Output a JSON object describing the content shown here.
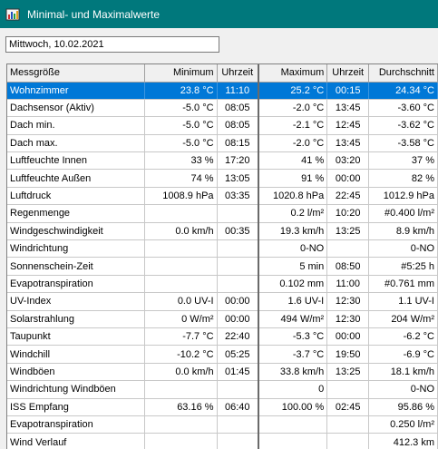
{
  "window": {
    "title": "Minimal- und Maximalwerte",
    "icon": "chart-app-icon"
  },
  "date_field": {
    "value": "Mittwoch, 10.02.2021"
  },
  "table": {
    "headers": {
      "name": "Messgröße",
      "minimum": "Minimum",
      "min_time": "Uhrzeit",
      "maximum": "Maximum",
      "max_time": "Uhrzeit",
      "average": "Durchschnitt"
    },
    "selected_row": 0,
    "rows": [
      {
        "name": "Wohnzimmer",
        "minimum": "23.8 °C",
        "min_time": "11:10",
        "maximum": "25.2 °C",
        "max_time": "00:15",
        "average": "24.34 °C"
      },
      {
        "name": "Dachsensor (Aktiv)",
        "minimum": "-5.0 °C",
        "min_time": "08:05",
        "maximum": "-2.0 °C",
        "max_time": "13:45",
        "average": "-3.60 °C"
      },
      {
        "name": "Dach min.",
        "minimum": "-5.0 °C",
        "min_time": "08:05",
        "maximum": "-2.1 °C",
        "max_time": "12:45",
        "average": "-3.62 °C"
      },
      {
        "name": "Dach max.",
        "minimum": "-5.0 °C",
        "min_time": "08:15",
        "maximum": "-2.0 °C",
        "max_time": "13:45",
        "average": "-3.58 °C"
      },
      {
        "name": "Luftfeuchte Innen",
        "minimum": "33 %",
        "min_time": "17:20",
        "maximum": "41 %",
        "max_time": "03:20",
        "average": "37 %"
      },
      {
        "name": "Luftfeuchte Außen",
        "minimum": "74 %",
        "min_time": "13:05",
        "maximum": "91 %",
        "max_time": "00:00",
        "average": "82 %"
      },
      {
        "name": "Luftdruck",
        "minimum": "1008.9 hPa",
        "min_time": "03:35",
        "maximum": "1020.8 hPa",
        "max_time": "22:45",
        "average": "1012.9 hPa"
      },
      {
        "name": "Regenmenge",
        "minimum": "",
        "min_time": "",
        "maximum": "0.2 l/m²",
        "max_time": "10:20",
        "average": "#0.400 l/m²"
      },
      {
        "name": "Windgeschwindigkeit",
        "minimum": "0.0 km/h",
        "min_time": "00:35",
        "maximum": "19.3 km/h",
        "max_time": "13:25",
        "average": "8.9 km/h"
      },
      {
        "name": "Windrichtung",
        "minimum": "",
        "min_time": "",
        "maximum": "0-NO",
        "max_time": "",
        "average": "0-NO"
      },
      {
        "name": "Sonnenschein-Zeit",
        "minimum": "",
        "min_time": "",
        "maximum": "5 min",
        "max_time": "08:50",
        "average": "#5:25 h"
      },
      {
        "name": "Evapotranspiration",
        "minimum": "",
        "min_time": "",
        "maximum": "0.102 mm",
        "max_time": "11:00",
        "average": "#0.761 mm"
      },
      {
        "name": "UV-Index",
        "minimum": "0.0 UV-I",
        "min_time": "00:00",
        "maximum": "1.6 UV-I",
        "max_time": "12:30",
        "average": "1.1 UV-I"
      },
      {
        "name": "Solarstrahlung",
        "minimum": "0 W/m²",
        "min_time": "00:00",
        "maximum": "494 W/m²",
        "max_time": "12:30",
        "average": "204 W/m²"
      },
      {
        "name": "Taupunkt",
        "minimum": "-7.7 °C",
        "min_time": "22:40",
        "maximum": "-5.3 °C",
        "max_time": "00:00",
        "average": "-6.2 °C"
      },
      {
        "name": "Windchill",
        "minimum": "-10.2 °C",
        "min_time": "05:25",
        "maximum": "-3.7 °C",
        "max_time": "19:50",
        "average": "-6.9 °C"
      },
      {
        "name": "Windböen",
        "minimum": "0.0 km/h",
        "min_time": "01:45",
        "maximum": "33.8 km/h",
        "max_time": "13:25",
        "average": "18.1 km/h"
      },
      {
        "name": "Windrichtung Windböen",
        "minimum": "",
        "min_time": "",
        "maximum": "0",
        "max_time": "",
        "average": "0-NO"
      },
      {
        "name": "ISS Empfang",
        "minimum": "63.16 %",
        "min_time": "06:40",
        "maximum": "100.00 %",
        "max_time": "02:45",
        "average": "95.86 %"
      },
      {
        "name": "Evapotranspiration",
        "minimum": "",
        "min_time": "",
        "maximum": "",
        "max_time": "",
        "average": "0.250 l/m²"
      },
      {
        "name": "Wind Verlauf",
        "minimum": "",
        "min_time": "",
        "maximum": "",
        "max_time": "",
        "average": "412.3 km"
      }
    ]
  }
}
